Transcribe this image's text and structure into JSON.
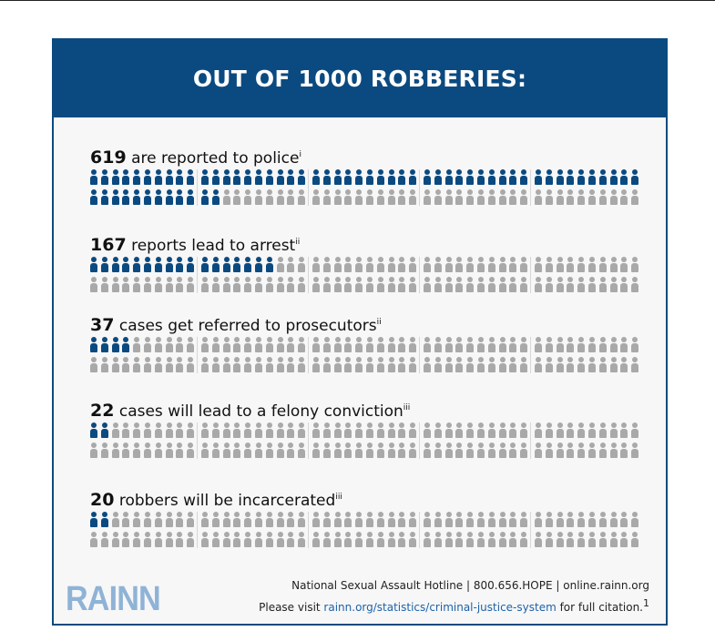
{
  "header": {
    "title": "OUT OF 1000 ROBBERIES:"
  },
  "stats": [
    {
      "number": "619",
      "text": " are reported to police",
      "note": "i",
      "count": 619
    },
    {
      "number": "167",
      "text": " reports lead to arrest",
      "note": "ii",
      "count": 167
    },
    {
      "number": "37",
      "text": " cases get referred to prosecutors",
      "note": "ii",
      "count": 37
    },
    {
      "number": "22",
      "text": " cases will lead to a felony conviction",
      "note": "iii",
      "count": 22
    },
    {
      "number": "20",
      "text": " robbers will be incarcerated",
      "note": "iii",
      "count": 20
    }
  ],
  "footer": {
    "logo": "RAINN",
    "hotline": "National Sexual Assault Hotline | 800.656.HOPE | online.rainn.org",
    "visit_prefix": "Please visit ",
    "visit_link": "rainn.org/statistics/criminal-justice-system",
    "visit_suffix": " for full citation.",
    "citation_mark": "1"
  },
  "colors": {
    "brand_blue": "#0b4a80",
    "figure_gray": "#a9a9a9",
    "logo_blue": "#8fb3d6",
    "link_blue": "#1d62a8"
  },
  "icons": {
    "figure": "person-icon"
  }
}
